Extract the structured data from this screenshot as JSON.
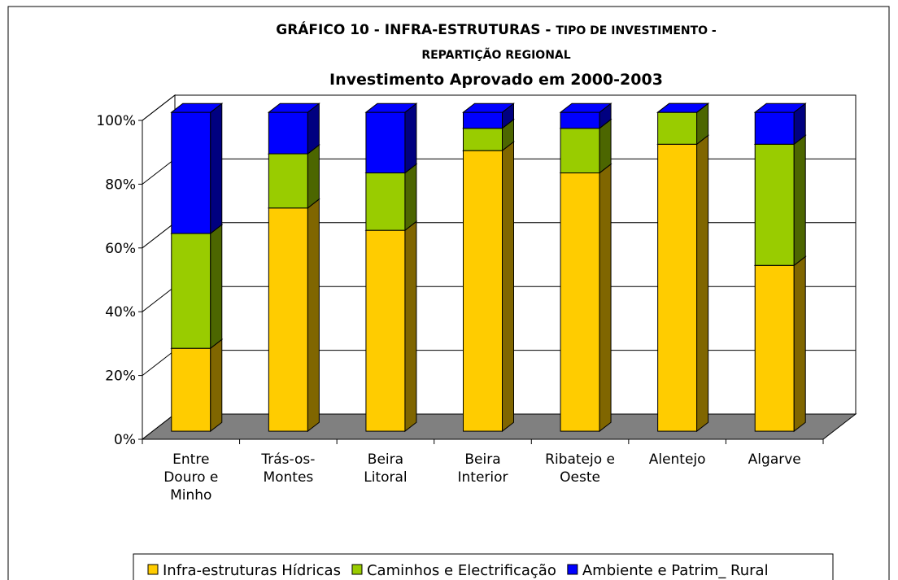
{
  "chart_data": {
    "type": "stacked_bar_3d",
    "title": [
      "GRÁFICO 10 - INFRA-ESTRUTURAS -",
      "TIPO DE INVESTIMENTO -",
      "REPARTIÇÃO REGIONAL"
    ],
    "subtitle": "Investimento Aprovado em 2000-2003",
    "categories": [
      "Entre Douro e Minho",
      "Trás-os-Montes",
      "Beira Litoral",
      "Beira Interior",
      "Ribatejo e Oeste",
      "Alentejo",
      "Algarve"
    ],
    "series": [
      {
        "name": "Infra-estruturas Hídricas",
        "color": "#ffcc00",
        "side": "#806600",
        "values": [
          26,
          70,
          63,
          88,
          81,
          90,
          52
        ]
      },
      {
        "name": "Caminhos e Electrificação",
        "color": "#99cc00",
        "side": "#4c6600",
        "values": [
          36,
          17,
          18,
          7,
          14,
          10,
          38
        ]
      },
      {
        "name": "Ambiente e Patrim_ Rural",
        "color": "#0000ff",
        "side": "#000080",
        "values": [
          38,
          13,
          19,
          5,
          5,
          0,
          10
        ]
      }
    ],
    "ylim": [
      0,
      100
    ],
    "yticks": [
      {
        "value": 0,
        "label": "0%"
      },
      {
        "value": 20,
        "label": "20%"
      },
      {
        "value": 40,
        "label": "40%"
      },
      {
        "value": 60,
        "label": "60%"
      },
      {
        "value": 80,
        "label": "80%"
      },
      {
        "value": 100,
        "label": "100%"
      }
    ],
    "grid": true,
    "legend": "bottom"
  }
}
